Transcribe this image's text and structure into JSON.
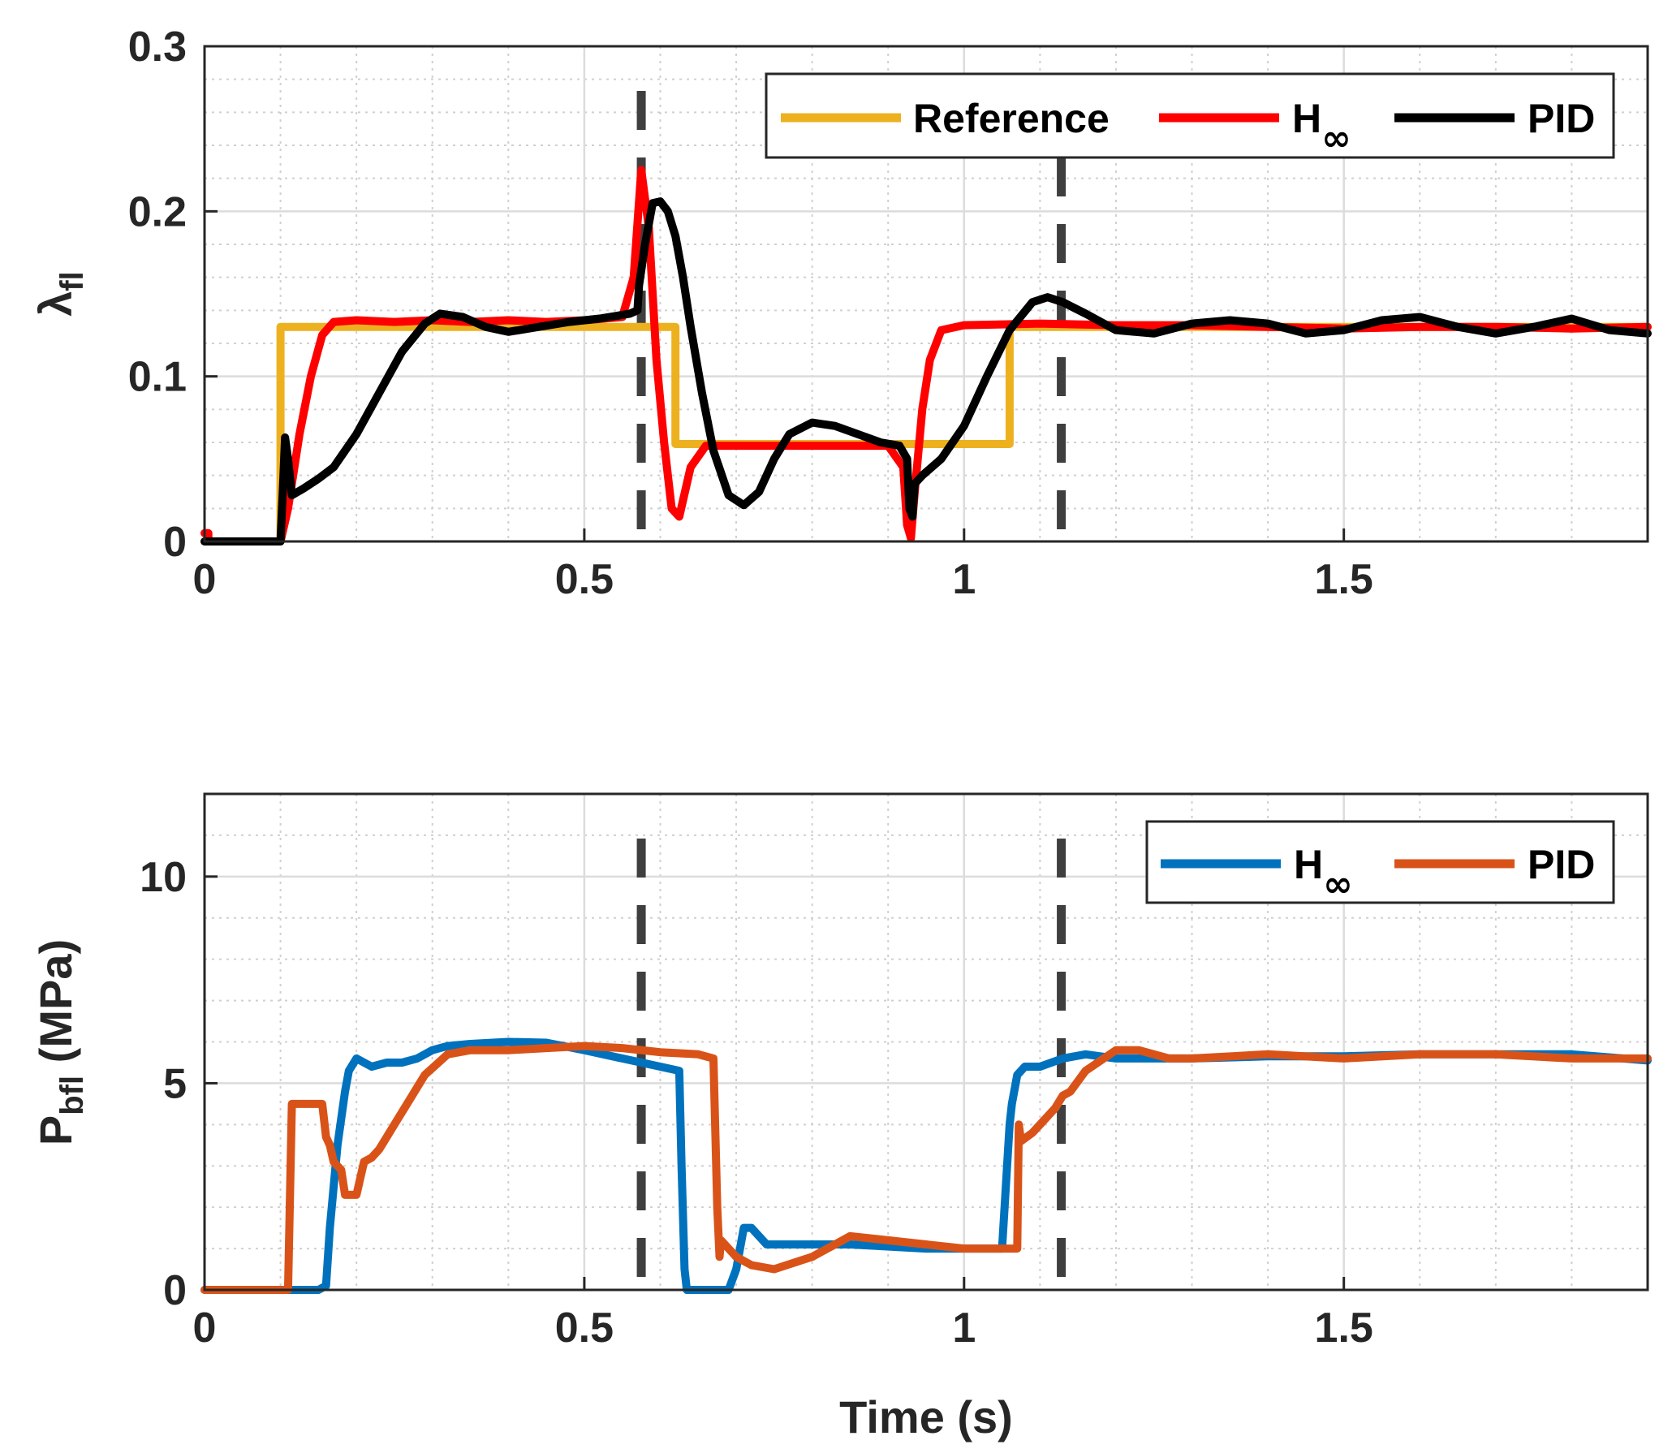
{
  "chart_data": [
    {
      "type": "line",
      "ylabel": {
        "main": "λ",
        "sub": "fl"
      },
      "xlabel": "",
      "xlim": [
        0,
        1.9
      ],
      "ylim": [
        0,
        0.3
      ],
      "xticks": [
        0,
        0.5,
        1,
        1.5
      ],
      "xtick_labels": [
        "0",
        "0.5",
        "1",
        "1.5"
      ],
      "yticks": [
        0,
        0.1,
        0.2,
        0.3
      ],
      "ytick_labels": [
        "0",
        "0.1",
        "0.2",
        "0.3"
      ],
      "grid": true,
      "minor_grid": true,
      "legend_position": "top-right",
      "vlines": [
        0.575,
        1.128
      ],
      "series": [
        {
          "name": "Reference",
          "legend_main": "Reference",
          "legend_sub": "",
          "color": "#EDB120",
          "x": [
            0,
            0.1,
            0.1,
            0.62,
            0.62,
            1.06,
            1.06,
            1.9
          ],
          "y": [
            0,
            0,
            0.13,
            0.13,
            0.059,
            0.059,
            0.13,
            0.13
          ]
        },
        {
          "name": "H∞",
          "legend_main": "H",
          "legend_sub": "∞",
          "color": "#FF0000",
          "x": [
            0,
            0.005,
            0.005,
            0.1,
            0.11,
            0.125,
            0.14,
            0.155,
            0.17,
            0.2,
            0.25,
            0.3,
            0.35,
            0.4,
            0.45,
            0.5,
            0.55,
            0.565,
            0.575,
            0.585,
            0.595,
            0.605,
            0.615,
            0.625,
            0.64,
            0.66,
            0.7,
            0.8,
            0.9,
            0.92,
            0.925,
            0.93,
            0.935,
            0.945,
            0.955,
            0.97,
            1.0,
            1.1,
            1.2,
            1.3,
            1.4,
            1.5,
            1.6,
            1.7,
            1.8,
            1.9
          ],
          "y": [
            0.005,
            0.005,
            0,
            0,
            0.02,
            0.065,
            0.1,
            0.125,
            0.133,
            0.134,
            0.133,
            0.134,
            0.133,
            0.134,
            0.133,
            0.134,
            0.136,
            0.16,
            0.225,
            0.19,
            0.11,
            0.06,
            0.02,
            0.015,
            0.045,
            0.058,
            0.058,
            0.058,
            0.058,
            0.045,
            0.01,
            0.002,
            0.03,
            0.08,
            0.11,
            0.128,
            0.131,
            0.132,
            0.131,
            0.131,
            0.13,
            0.129,
            0.13,
            0.13,
            0.129,
            0.13
          ]
        },
        {
          "name": "PID",
          "legend_main": "PID",
          "legend_sub": "",
          "color": "#000000",
          "x": [
            0,
            0.1,
            0.103,
            0.106,
            0.11,
            0.115,
            0.13,
            0.15,
            0.17,
            0.2,
            0.23,
            0.26,
            0.29,
            0.31,
            0.34,
            0.37,
            0.4,
            0.44,
            0.48,
            0.52,
            0.56,
            0.57,
            0.572,
            0.58,
            0.59,
            0.6,
            0.61,
            0.62,
            0.63,
            0.64,
            0.655,
            0.67,
            0.69,
            0.71,
            0.73,
            0.75,
            0.77,
            0.8,
            0.83,
            0.86,
            0.89,
            0.915,
            0.925,
            0.928,
            0.932,
            0.935,
            0.945,
            0.97,
            1.0,
            1.03,
            1.06,
            1.09,
            1.11,
            1.13,
            1.16,
            1.2,
            1.25,
            1.3,
            1.35,
            1.4,
            1.45,
            1.5,
            1.55,
            1.6,
            1.65,
            1.7,
            1.75,
            1.8,
            1.85,
            1.9
          ],
          "y": [
            0,
            0,
            0.03,
            0.063,
            0.05,
            0.028,
            0.032,
            0.038,
            0.045,
            0.065,
            0.09,
            0.115,
            0.132,
            0.138,
            0.136,
            0.13,
            0.127,
            0.13,
            0.133,
            0.135,
            0.138,
            0.14,
            0.155,
            0.18,
            0.205,
            0.206,
            0.2,
            0.185,
            0.16,
            0.13,
            0.09,
            0.055,
            0.028,
            0.022,
            0.03,
            0.05,
            0.065,
            0.072,
            0.07,
            0.065,
            0.06,
            0.058,
            0.05,
            0.02,
            0.015,
            0.035,
            0.04,
            0.05,
            0.07,
            0.1,
            0.128,
            0.145,
            0.148,
            0.145,
            0.138,
            0.128,
            0.126,
            0.132,
            0.134,
            0.132,
            0.126,
            0.128,
            0.134,
            0.136,
            0.13,
            0.126,
            0.13,
            0.135,
            0.128,
            0.126
          ]
        }
      ]
    },
    {
      "type": "line",
      "ylabel": {
        "main": "P",
        "sub": "bfl",
        "suffix": " (MPa)"
      },
      "xlabel": "Time (s)",
      "xlim": [
        0,
        1.9
      ],
      "ylim": [
        0,
        12
      ],
      "xticks": [
        0,
        0.5,
        1,
        1.5
      ],
      "xtick_labels": [
        "0",
        "0.5",
        "1",
        "1.5"
      ],
      "yticks": [
        0,
        5,
        10
      ],
      "ytick_labels": [
        "0",
        "5",
        "10"
      ],
      "grid": true,
      "minor_grid": true,
      "legend_position": "top-right",
      "vlines": [
        0.575,
        1.128
      ],
      "series": [
        {
          "name": "H∞",
          "legend_main": "H",
          "legend_sub": "∞",
          "color": "#0072BD",
          "x": [
            0,
            0.15,
            0.16,
            0.165,
            0.175,
            0.185,
            0.19,
            0.2,
            0.22,
            0.24,
            0.26,
            0.28,
            0.3,
            0.32,
            0.35,
            0.4,
            0.45,
            0.5,
            0.55,
            0.6,
            0.625,
            0.628,
            0.632,
            0.635,
            0.69,
            0.7,
            0.71,
            0.72,
            0.74,
            0.78,
            0.85,
            0.95,
            1.0,
            1.05,
            1.06,
            1.063,
            1.07,
            1.08,
            1.1,
            1.13,
            1.16,
            1.2,
            1.25,
            1.3,
            1.4,
            1.5,
            1.6,
            1.7,
            1.8,
            1.9
          ],
          "y": [
            0,
            0,
            0.1,
            1.5,
            3.5,
            4.8,
            5.3,
            5.6,
            5.4,
            5.5,
            5.5,
            5.6,
            5.8,
            5.9,
            5.95,
            6.0,
            5.98,
            5.8,
            5.6,
            5.4,
            5.3,
            3.0,
            0.5,
            0,
            0,
            0.5,
            1.5,
            1.5,
            1.1,
            1.1,
            1.1,
            1.0,
            1.0,
            1.0,
            4.0,
            4.5,
            5.2,
            5.4,
            5.4,
            5.6,
            5.7,
            5.6,
            5.6,
            5.6,
            5.65,
            5.65,
            5.7,
            5.7,
            5.7,
            5.55
          ]
        },
        {
          "name": "PID",
          "legend_main": "PID",
          "legend_sub": "",
          "color": "#D95319",
          "x": [
            0,
            0.11,
            0.115,
            0.155,
            0.16,
            0.165,
            0.17,
            0.18,
            0.185,
            0.19,
            0.2,
            0.21,
            0.22,
            0.23,
            0.25,
            0.27,
            0.29,
            0.32,
            0.35,
            0.4,
            0.45,
            0.5,
            0.55,
            0.6,
            0.65,
            0.67,
            0.675,
            0.678,
            0.68,
            0.69,
            0.7,
            0.72,
            0.75,
            0.8,
            0.85,
            0.9,
            0.95,
            1.0,
            1.05,
            1.07,
            1.072,
            1.075,
            1.09,
            1.1,
            1.12,
            1.13,
            1.14,
            1.16,
            1.2,
            1.23,
            1.27,
            1.3,
            1.4,
            1.5,
            1.6,
            1.7,
            1.8,
            1.9
          ],
          "y": [
            0,
            0,
            4.5,
            4.5,
            3.7,
            3.5,
            3.1,
            2.9,
            2.3,
            2.3,
            2.3,
            3.1,
            3.2,
            3.4,
            4.0,
            4.6,
            5.2,
            5.7,
            5.8,
            5.8,
            5.85,
            5.9,
            5.85,
            5.75,
            5.7,
            5.6,
            2.0,
            0.8,
            1.2,
            1.0,
            0.8,
            0.6,
            0.5,
            0.8,
            1.3,
            1.2,
            1.1,
            1.0,
            1.0,
            1.0,
            4.0,
            3.6,
            3.8,
            4.0,
            4.4,
            4.7,
            4.8,
            5.3,
            5.8,
            5.8,
            5.6,
            5.6,
            5.7,
            5.6,
            5.7,
            5.7,
            5.6,
            5.6
          ]
        }
      ]
    }
  ]
}
